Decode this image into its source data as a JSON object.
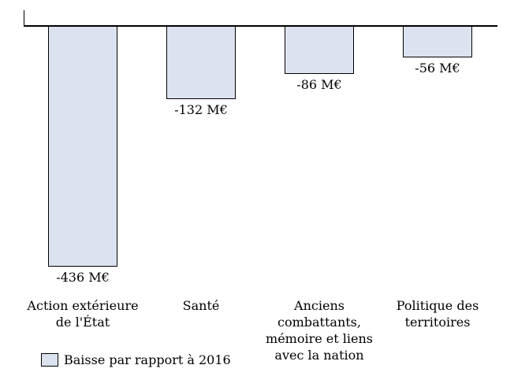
{
  "chart_data": {
    "type": "bar",
    "title": "",
    "xlabel": "",
    "ylabel": "",
    "unit": "M€",
    "orientation": "vertical-negative",
    "baseline": 0,
    "ylim": [
      -460,
      0
    ],
    "grid": false,
    "categories": [
      "Action extérieure de l'État",
      "Santé",
      "Anciens combattants, mémoire et liens avec la nation",
      "Politique des territoires"
    ],
    "categories_display": [
      "Action extérieure\nde l'État",
      "Santé",
      "Anciens\ncombattants,\nmémoire et liens\navec la nation",
      "Politique des\nterritoires"
    ],
    "values": [
      -436,
      -132,
      -86,
      -56
    ],
    "value_labels": [
      "-436 M€",
      "-132 M€",
      "-86 M€",
      "-56 M€"
    ],
    "legend": {
      "label": "Baisse par rapport à 2016",
      "position": "bottom-left"
    },
    "colors": {
      "bar_fill": "#dce3f0",
      "bar_border": "#000000",
      "axis": "#000000",
      "text": "#000000"
    }
  }
}
